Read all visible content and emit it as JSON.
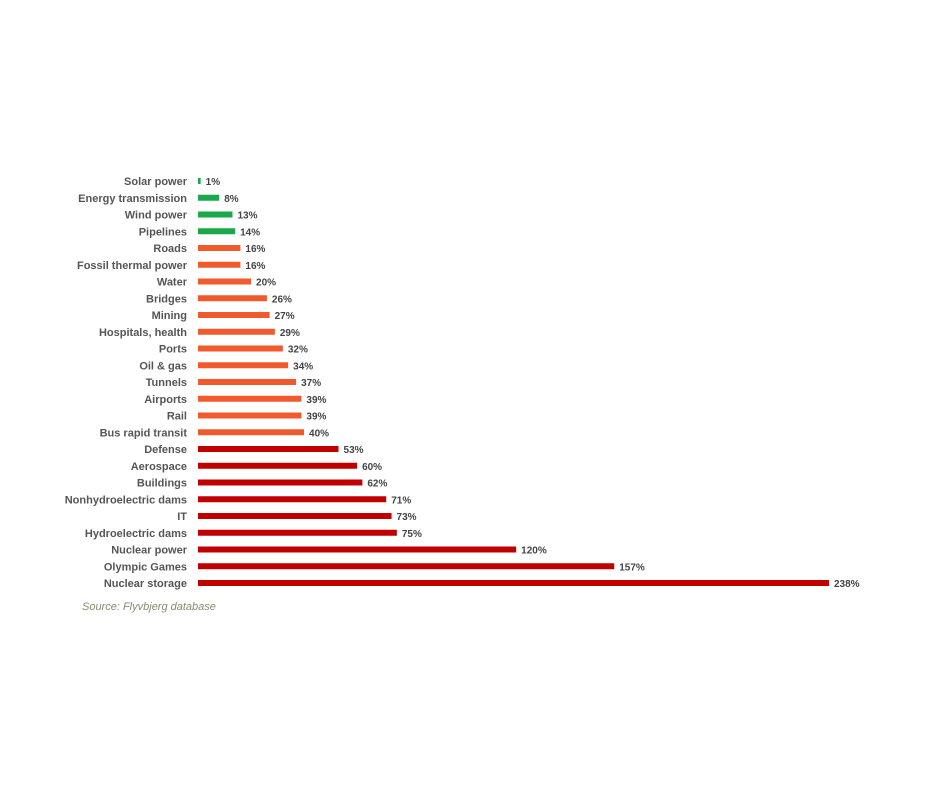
{
  "chart_data": {
    "type": "bar",
    "orientation": "horizontal",
    "categories": [
      "Solar power",
      "Energy transmission",
      "Wind power",
      "Pipelines",
      "Roads",
      "Fossil thermal power",
      "Water",
      "Bridges",
      "Mining",
      "Hospitals, health",
      "Ports",
      "Oil & gas",
      "Tunnels",
      "Airports",
      "Rail",
      "Bus rapid transit",
      "Defense",
      "Aerospace",
      "Buildings",
      "Nonhydroelectric dams",
      "IT",
      "Hydroelectric dams",
      "Nuclear power",
      "Olympic Games",
      "Nuclear storage"
    ],
    "values": [
      1,
      8,
      13,
      14,
      16,
      16,
      20,
      26,
      27,
      29,
      32,
      34,
      37,
      39,
      39,
      40,
      53,
      60,
      62,
      71,
      73,
      75,
      120,
      157,
      238
    ],
    "value_labels": [
      "1%",
      "8%",
      "13%",
      "14%",
      "16%",
      "16%",
      "20%",
      "26%",
      "27%",
      "29%",
      "32%",
      "34%",
      "37%",
      "39%",
      "39%",
      "40%",
      "53%",
      "60%",
      "62%",
      "71%",
      "73%",
      "75%",
      "120%",
      "157%",
      "238%"
    ],
    "bar_groups": [
      "green",
      "green",
      "green",
      "green",
      "orange",
      "orange",
      "orange",
      "orange",
      "orange",
      "orange",
      "orange",
      "orange",
      "orange",
      "orange",
      "orange",
      "orange",
      "red",
      "red",
      "red",
      "red",
      "red",
      "red",
      "red",
      "red",
      "red"
    ],
    "colors": {
      "green": "#1aa84a",
      "orange": "#f05a2c",
      "red": "#c00000"
    },
    "xlim": [
      0,
      238
    ],
    "grid": false,
    "legend": "none",
    "title": "",
    "xlabel": "",
    "ylabel": ""
  },
  "source": "Source: Flyvbjerg database"
}
